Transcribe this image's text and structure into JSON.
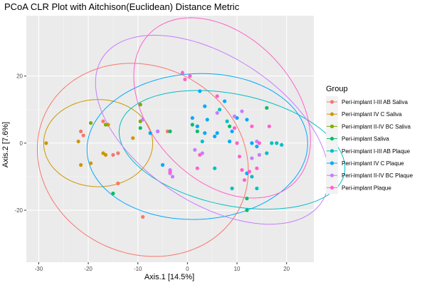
{
  "chart_data": {
    "type": "scatter",
    "title": "PCoA CLR Plot with Aitchison(Euclidean) Distance Metric",
    "xlabel": "Axis.1   [14.5%]",
    "ylabel": "Axis.2   [7.6%]",
    "xlim": [
      -32.5,
      25.5
    ],
    "ylim": [
      -35.5,
      38
    ],
    "xticks": [
      -30,
      -20,
      -10,
      0,
      10,
      20
    ],
    "yticks": [
      -20,
      0,
      20
    ],
    "xtick_labels": [
      "-30",
      "-20",
      "-10",
      "0",
      "10",
      "20"
    ],
    "ytick_labels": [
      "-20",
      "0",
      "20"
    ],
    "grid": true,
    "legend": {
      "title": "Group",
      "position": "right"
    },
    "series": [
      {
        "name": "Peri-implant I-III AB Saliva",
        "color": "#F8766D",
        "points": [
          [
            -21.5,
            3.5
          ],
          [
            -21,
            2.3
          ],
          [
            -17,
            6.5
          ],
          [
            -15,
            -3.5
          ],
          [
            -14,
            -3
          ],
          [
            -14,
            -12
          ],
          [
            -9,
            -22
          ],
          [
            -4,
            3.5
          ]
        ],
        "ellipse": {
          "cx": -9,
          "cy": -5,
          "rx": 21,
          "ry": 29,
          "angle": 10
        }
      },
      {
        "name": "Peri-implant IV C Saliva",
        "color": "#CD9600",
        "points": [
          [
            -28.5,
            0
          ],
          [
            -22,
            0.5
          ],
          [
            -21.5,
            -6.5
          ],
          [
            -19.5,
            -6
          ],
          [
            -17,
            -3
          ],
          [
            -16.5,
            -3.5
          ],
          [
            -16,
            5.5
          ],
          [
            -11,
            1.5
          ]
        ],
        "ellipse": {
          "cx": -18,
          "cy": 0,
          "rx": 11,
          "ry": 13,
          "angle": 0
        }
      },
      {
        "name": "Peri-implant II-IV BC Saliva",
        "color": "#7CAE00",
        "points": [
          [
            -19.5,
            6
          ],
          [
            -16.5,
            5.5
          ],
          [
            -9.5,
            11.5
          ],
          [
            -9.5,
            6.5
          ]
        ]
      },
      {
        "name": "Peri-implant Saliva",
        "color": "#00BE67",
        "points": [
          [
            -15,
            -15
          ],
          [
            -9.5,
            4.5
          ],
          [
            -3.5,
            3.5
          ],
          [
            1,
            5.5
          ],
          [
            2,
            3.5
          ],
          [
            8.5,
            5
          ],
          [
            12,
            -16.5
          ],
          [
            12,
            -20
          ],
          [
            16,
            10.5
          ]
        ]
      },
      {
        "name": "Peri-implant I-III AB Plaque",
        "color": "#00BFC4",
        "points": [
          [
            2,
            5
          ],
          [
            3,
            0.5
          ],
          [
            5.5,
            -7.5
          ],
          [
            6.5,
            10
          ],
          [
            8,
            6.5
          ],
          [
            9,
            -13.5
          ],
          [
            13,
            -10
          ],
          [
            14,
            -13.5
          ],
          [
            16,
            -3
          ],
          [
            17,
            0
          ],
          [
            18,
            0
          ],
          [
            19,
            -0.5
          ]
        ],
        "ellipse": {
          "cx": 9,
          "cy": -2,
          "rx": 16,
          "ry": 24,
          "angle": 65
        }
      },
      {
        "name": "Peri-implant IV C Plaque",
        "color": "#00A9FF",
        "points": [
          [
            -7.5,
            3
          ],
          [
            -6,
            3.5
          ],
          [
            -5,
            -6.5
          ],
          [
            1,
            7.5
          ],
          [
            2,
            5
          ],
          [
            2.5,
            15.5
          ],
          [
            3.5,
            3
          ],
          [
            3.5,
            11
          ],
          [
            4,
            7
          ],
          [
            5.5,
            2
          ],
          [
            6,
            3
          ],
          [
            7.5,
            12.5
          ],
          [
            8.5,
            0.5
          ],
          [
            9,
            3.5
          ],
          [
            10,
            7.5
          ],
          [
            12,
            7
          ],
          [
            12,
            -9
          ],
          [
            13,
            0
          ],
          [
            14,
            -1
          ]
        ],
        "ellipse": {
          "cx": 2,
          "cy": -1,
          "rx": 22.5,
          "ry": 21.5,
          "angle": 30
        }
      },
      {
        "name": "Peri-implant II-IV BC Plaque",
        "color": "#C77CFF",
        "points": [
          [
            -9,
            7
          ],
          [
            -6,
            3.5
          ],
          [
            -3.5,
            -8
          ],
          [
            -3.5,
            -9
          ],
          [
            -3,
            -10
          ],
          [
            1.5,
            -2
          ],
          [
            3,
            -3
          ],
          [
            6,
            9
          ],
          [
            9.5,
            8
          ],
          [
            11,
            9.5
          ],
          [
            13,
            -4.5
          ],
          [
            14,
            0.5
          ],
          [
            14.5,
            -3.5
          ]
        ],
        "ellipse": {
          "cx": 5,
          "cy": 4,
          "rx": 18,
          "ry": 32,
          "angle": 35
        }
      },
      {
        "name": "Peri-implant Plaque",
        "color": "#FF61CC",
        "points": [
          [
            -3.5,
            -8.5
          ],
          [
            -1,
            21
          ],
          [
            -0.5,
            19
          ],
          [
            0.5,
            20
          ],
          [
            2,
            -7.5
          ],
          [
            2.5,
            -3.5
          ],
          [
            6,
            14
          ],
          [
            9.5,
            4.5
          ],
          [
            10,
            0
          ],
          [
            10.5,
            -4
          ],
          [
            11,
            -8
          ],
          [
            11.5,
            -11
          ],
          [
            12.5,
            -8.5
          ],
          [
            13,
            5
          ],
          [
            14,
            -7.5
          ],
          [
            14.5,
            0
          ],
          [
            16.5,
            5
          ]
        ],
        "ellipse": {
          "cx": 7,
          "cy": 10.5,
          "rx": 16,
          "ry": 28,
          "angle": 20
        }
      }
    ]
  }
}
